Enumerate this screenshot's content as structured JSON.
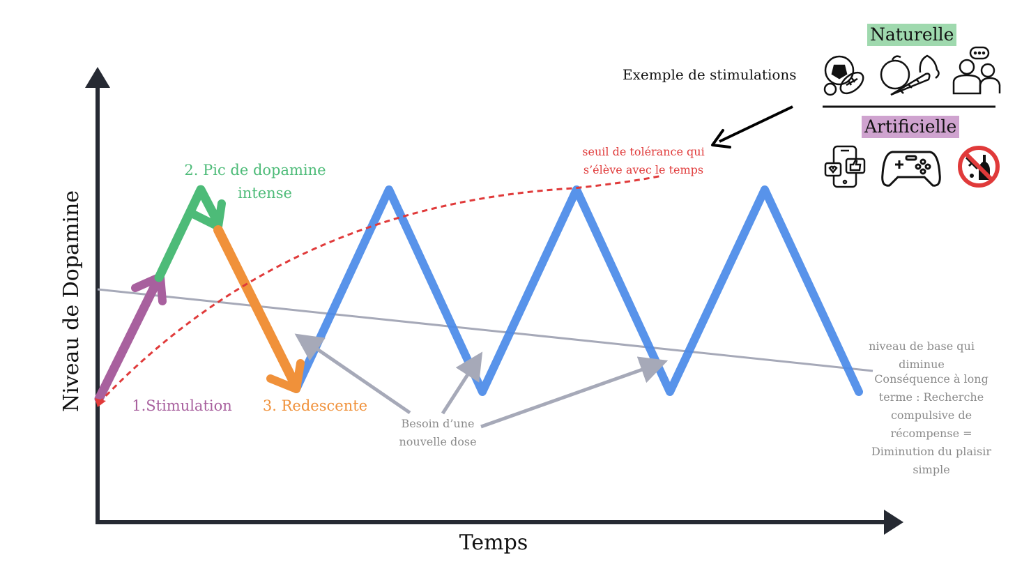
{
  "axes": {
    "x_label": "Temps",
    "y_label": "Niveau de Dopamine"
  },
  "phases": {
    "stimulation": "1.Stimulation",
    "peak_line1": "2. Pic de dopamine",
    "peak_line2": "intense",
    "descent": "3. Redescente"
  },
  "annotations": {
    "tolerance_line1": "seuil de tolérance qui",
    "tolerance_line2": "s’élève avec le temps",
    "baseline_line1": "niveau de base qui",
    "baseline_line2": "diminue",
    "need_line1": "Besoin d’une",
    "need_line2": "nouvelle dose",
    "consequence": [
      "Conséquence à long",
      "terme : Recherche",
      "compulsive de",
      "récompense =",
      "Diminution du plaisir",
      "simple"
    ]
  },
  "legend": {
    "example_label": "Exemple de stimulations",
    "natural": "Naturelle",
    "artificial": "Artificielle",
    "natural_icons": [
      "sports-balls-icon",
      "fruits-vegetables-icon",
      "social-conversation-icon"
    ],
    "artificial_icons": [
      "smartphone-social-icon",
      "game-controller-icon",
      "no-drugs-alcohol-icon"
    ]
  },
  "colors": {
    "stimulation": "#a8609e",
    "peak": "#4dbb78",
    "descent": "#f0913a",
    "wave": "#4a8ae8",
    "tolerance": "#e03a3a",
    "baseline": "#a6a9b8",
    "axis": "#262a33"
  }
}
